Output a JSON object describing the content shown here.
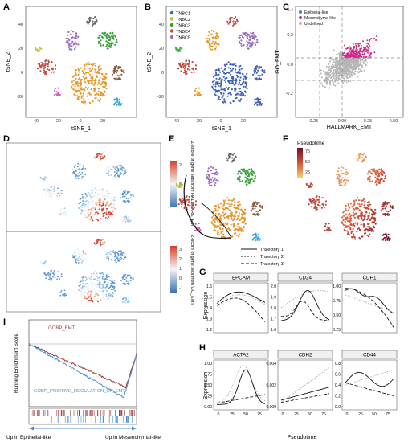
{
  "panels": {
    "A": {
      "letter": "A",
      "xlabel": "tSNE_1",
      "ylabel": "tSNE_2",
      "xticks": [
        "-40",
        "-20",
        "0",
        "20"
      ],
      "yticks": [
        "40",
        "20",
        "0",
        "-20"
      ]
    },
    "B": {
      "letter": "B",
      "xlabel": "tSNE_1",
      "ylabel": "tSNE_2",
      "xticks": [
        "-40",
        "-20",
        "0",
        "20"
      ],
      "yticks": [
        "40",
        "20",
        "0",
        "-20"
      ],
      "legend": [
        {
          "label": "TNBC1",
          "color": "#3f62b8"
        },
        {
          "label": "TNBC2",
          "color": "#b3c42f"
        },
        {
          "label": "TNBC3",
          "color": "#36a03a"
        },
        {
          "label": "TNBC4",
          "color": "#c04a3e"
        },
        {
          "label": "TNBC5",
          "color": "#9a6abf"
        }
      ]
    },
    "C": {
      "letter": "C",
      "xlabel": "HALLMARK_EMT",
      "ylabel": "GO_EMT",
      "xticks": [
        "-0.25",
        "0.00",
        "0.25",
        "0.50"
      ],
      "yticks": [
        "0.4",
        "0.2",
        "0.0",
        "-0.2"
      ],
      "legend": [
        {
          "label": "Epithelial-like",
          "color": "#4a7fc1"
        },
        {
          "label": "Mesenchyme-like",
          "color": "#cc2d8a"
        },
        {
          "label": "Undefined",
          "color": "#b5b5b5"
        }
      ]
    },
    "D": {
      "letter": "D",
      "colorbar_top_label": "Z-score of gene sets from HALLMARK_EMT",
      "colorbar_top_ticks": [
        "2",
        "0",
        "-2"
      ],
      "colorbar_bottom_label": "Z-score of gene sets from GO_EMT",
      "colorbar_bottom_ticks": [
        "3",
        "2",
        "1",
        "0",
        "-1"
      ]
    },
    "E": {
      "letter": "E",
      "legend": [
        {
          "label": "Trajectory 1"
        },
        {
          "label": "Trajectory 2"
        },
        {
          "label": "Trajectory 3"
        }
      ]
    },
    "F": {
      "letter": "F",
      "colorbar_label": "Pseudotime",
      "colorbar_ticks": [
        "75",
        "50",
        "25"
      ]
    },
    "G": {
      "letter": "G",
      "ylabel": "Expression",
      "genes": [
        {
          "name": "EPCAM",
          "yticks": [
            "1.6",
            "1.5",
            "1.4",
            "1.3",
            "1.2"
          ]
        },
        {
          "name": "CD24",
          "yticks": [
            "2.0",
            "1.9",
            "1.8",
            "1.7",
            "1.6"
          ]
        },
        {
          "name": "CDH1",
          "yticks": [
            "1.00",
            "0.75",
            "0.50",
            "0.25"
          ]
        }
      ]
    },
    "H": {
      "letter": "H",
      "ylabel": "Expression",
      "xlabel": "Pseudotime",
      "xticks": [
        "0",
        "25",
        "50",
        "75"
      ],
      "genes": [
        {
          "name": "ACTA2",
          "yticks": [
            "1.00",
            "0.75",
            "0.50",
            "0.25",
            "0.00"
          ]
        },
        {
          "name": "CDH2",
          "yticks": [
            "0.004",
            "0.002",
            "0.000"
          ]
        },
        {
          "name": "CD44",
          "yticks": [
            "0.8",
            "0.6",
            "0.4",
            "0.2",
            "0.0"
          ]
        }
      ]
    },
    "I": {
      "letter": "I",
      "ylabel": "Running Enrichment Score",
      "set1": "GOBP_EMT",
      "set2": "GOBP_POSITIVE_REGULATION_OF_EMT",
      "left_label": "Up in Epithelial-like",
      "right_label": "Up in Mesenchymal-like"
    }
  },
  "colors": {
    "TNBC1": "#3f62b8",
    "TNBC2": "#b3c42f",
    "TNBC3": "#36a03a",
    "TNBC4": "#c04a3e",
    "TNBC5": "#9a6abf",
    "orange": "#e8962a",
    "epi": "#4a7fc1",
    "mes": "#cc2d8a",
    "undef": "#b5b5b5"
  }
}
